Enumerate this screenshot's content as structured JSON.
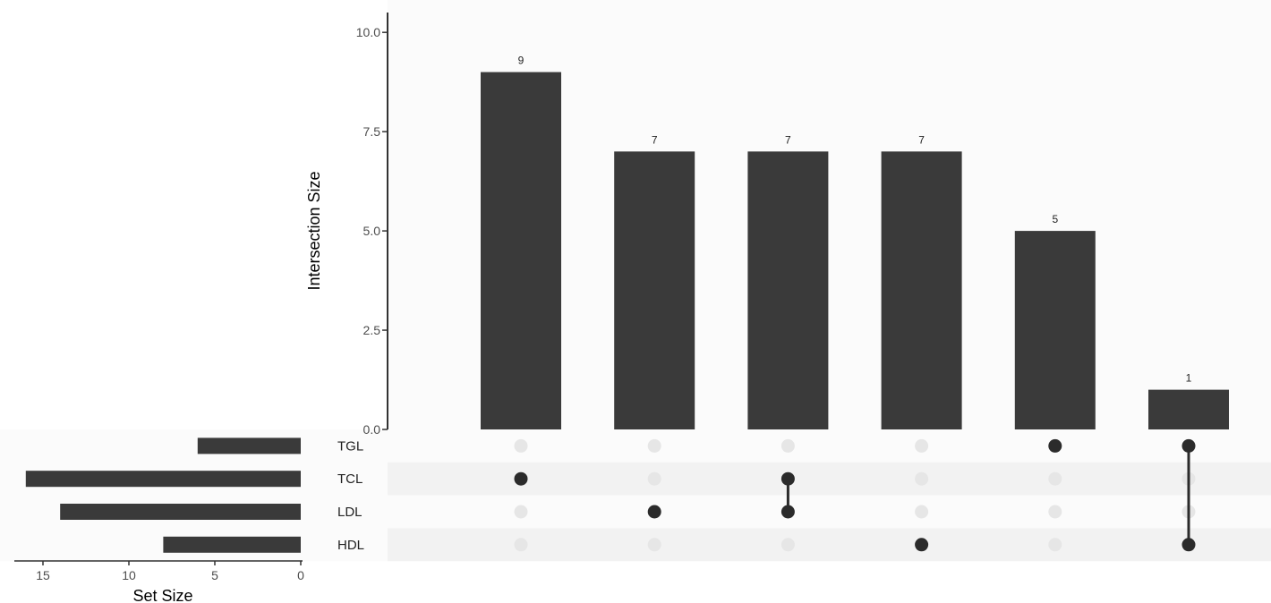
{
  "chart_data": {
    "type": "upset",
    "ylabel": "Intersection Size",
    "ylim": [
      0,
      10.5
    ],
    "yticks": [
      0,
      2.5,
      5,
      7.5,
      10
    ],
    "ytick_labels": [
      "0.0",
      "2.5",
      "5.0",
      "7.5",
      "10.0"
    ],
    "intersections": [
      {
        "value": 9,
        "label": "9",
        "sets": [
          "TCL"
        ]
      },
      {
        "value": 7,
        "label": "7",
        "sets": [
          "LDL"
        ]
      },
      {
        "value": 7,
        "label": "7",
        "sets": [
          "TCL",
          "LDL"
        ]
      },
      {
        "value": 7,
        "label": "7",
        "sets": [
          "HDL"
        ]
      },
      {
        "value": 5,
        "label": "5",
        "sets": [
          "TGL"
        ]
      },
      {
        "value": 1,
        "label": "1",
        "sets": [
          "TGL",
          "HDL"
        ]
      }
    ],
    "sets": [
      {
        "name": "TGL",
        "size": 6
      },
      {
        "name": "TCL",
        "size": 16
      },
      {
        "name": "LDL",
        "size": 14
      },
      {
        "name": "HDL",
        "size": 8
      }
    ],
    "set_size_label": "Set Size",
    "set_size_ticks": [
      15,
      10,
      5,
      0
    ],
    "set_size_tick_labels": [
      "15",
      "10",
      "5",
      "0"
    ],
    "colors": {
      "bar": "#3a3a3a",
      "dot_active": "#2b2b2b",
      "dot_inactive": "#e6e6e6",
      "panel_bg": "#fbfbfb",
      "stripe": "#f2f2f2",
      "axis": "#333333"
    }
  }
}
